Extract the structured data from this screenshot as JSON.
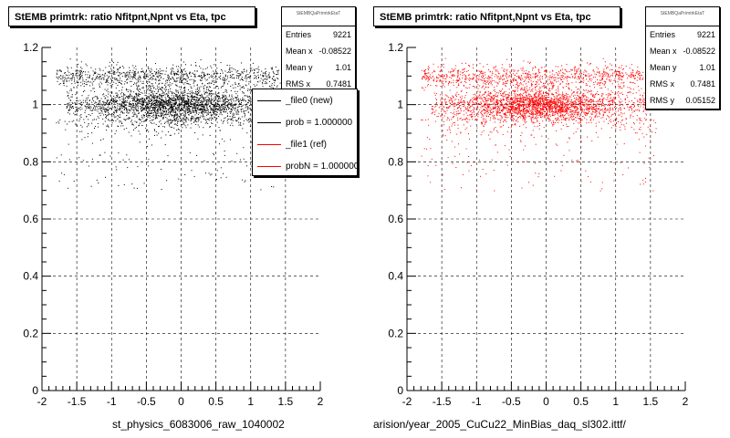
{
  "chart_data": [
    {
      "type": "scatter",
      "title": "StEMB primtrk: ratio Nfitpnt,Npnt vs Eta, tpc",
      "xlim": [
        -2,
        2
      ],
      "ylim": [
        0,
        1.2
      ],
      "xticks": [
        "-2",
        "-1.5",
        "-1",
        "-0.5",
        "0",
        "0.5",
        "1",
        "1.5",
        "2"
      ],
      "yticks": [
        "0",
        "0.2",
        "0.4",
        "0.6",
        "0.8",
        "1",
        "1.2"
      ],
      "xlabel": "st_physics_6083006_raw_1040002",
      "grid": true,
      "marker_color": "#000000",
      "series": [
        {
          "description": "dense band",
          "x_range": [
            -1.65,
            1.45
          ],
          "y": 1.0,
          "y_spread": 0.03,
          "density": "high"
        },
        {
          "description": "upper band",
          "x_range": [
            -1.8,
            1.4
          ],
          "y": 1.1,
          "y_spread": 0.02,
          "density": "medium"
        },
        {
          "description": "lower tail",
          "x_range": [
            -1.8,
            1.6
          ],
          "y_range": [
            0.7,
            0.95
          ],
          "density": "low"
        }
      ],
      "stats": {
        "header": "StEMBQaPrimtrkEtaT",
        "rows": [
          [
            "Entries",
            "9221"
          ],
          [
            "Mean x",
            "-0.08522"
          ],
          [
            "Mean y",
            "1.01"
          ],
          [
            "RMS x",
            "0.7481"
          ]
        ]
      },
      "legend": [
        {
          "label": "_file0 (new)",
          "color": "#000000"
        },
        {
          "label": "prob = 1.000000",
          "color": "#000000"
        },
        {
          "label": "_file1 (ref)",
          "color": "#ff0000"
        },
        {
          "label": "probN = 1.000000",
          "color": "#ff0000"
        }
      ]
    },
    {
      "type": "scatter",
      "title": "StEMB primtrk: ratio Nfitpnt,Npnt vs Eta, tpc",
      "xlim": [
        -2,
        2
      ],
      "ylim": [
        0,
        1.2
      ],
      "xticks": [
        "-2",
        "-1.5",
        "-1",
        "-0.5",
        "0",
        "0.5",
        "1",
        "1.5",
        "2"
      ],
      "yticks": [
        "0",
        "0.2",
        "0.4",
        "0.6",
        "0.8",
        "1",
        "1.2"
      ],
      "xlabel": "arision/year_2005_CuCu22_MinBias_daq_sl302.ittf/",
      "grid": true,
      "marker_color": "#ff0000",
      "series": [
        {
          "description": "dense band",
          "x_range": [
            -1.65,
            1.45
          ],
          "y": 1.0,
          "y_spread": 0.03,
          "density": "high"
        },
        {
          "description": "upper band",
          "x_range": [
            -1.8,
            1.4
          ],
          "y": 1.1,
          "y_spread": 0.02,
          "density": "medium"
        },
        {
          "description": "lower tail",
          "x_range": [
            -1.8,
            1.6
          ],
          "y_range": [
            0.7,
            0.95
          ],
          "density": "low"
        }
      ],
      "stats": {
        "header": "StEMBQaPrimtrkEtaT",
        "rows": [
          [
            "Entries",
            "9221"
          ],
          [
            "Mean x",
            "-0.08522"
          ],
          [
            "Mean y",
            "1.01"
          ],
          [
            "RMS x",
            "0.7481"
          ],
          [
            "RMS y",
            "0.05152"
          ]
        ]
      }
    }
  ]
}
